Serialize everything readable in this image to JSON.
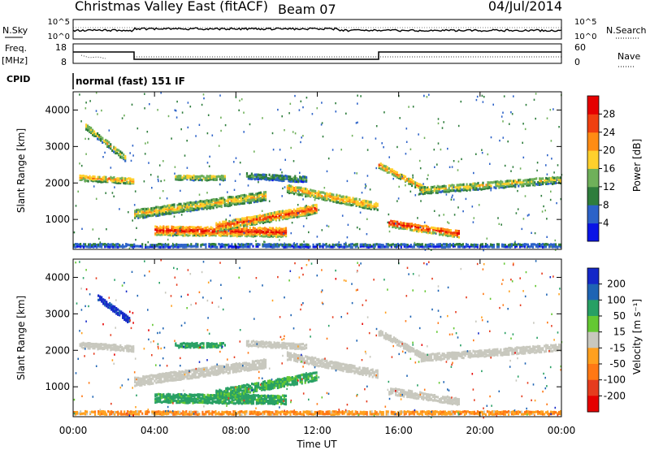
{
  "header": {
    "title": "Christmas Valley East (fitACF)",
    "beam": "Beam 07",
    "date": "04/Jul/2014"
  },
  "params": {
    "nsky_label": "N.Sky",
    "nsearch_label": "N.Search",
    "freq_label": "Freq.",
    "freq_unit": "[MHz]",
    "nave_label": "Nave",
    "cpid_label": "CPID",
    "cpid_value": "normal (fast) 151 IF",
    "noise_ticks": [
      "10^5",
      "10^0"
    ],
    "freq_ticks": [
      18,
      8
    ],
    "nave_ticks": [
      60,
      0
    ]
  },
  "chart_data": [
    {
      "type": "heatmap",
      "panel": "power",
      "ylabel": "Slant Range [km]",
      "xlabel": "",
      "x_ticks": [
        "00:00",
        "04:00",
        "08:00",
        "12:00",
        "16:00",
        "20:00",
        "00:00"
      ],
      "y_ticks": [
        1000,
        2000,
        3000,
        4000
      ],
      "ylim": [
        180,
        4500
      ],
      "colorbar": {
        "label": "Power [dB]",
        "ticks": [
          4,
          8,
          12,
          16,
          20,
          24,
          28
        ],
        "colors": [
          "#0a14e6",
          "#2c62c8",
          "#2e7d3c",
          "#6fb05a",
          "#ffd02c",
          "#ff8c14",
          "#f04010",
          "#e60000"
        ]
      },
      "bands": [
        {
          "t": [
            0.3,
            3.0
          ],
          "r0": 2150,
          "r1": 2050,
          "w": 160,
          "v": 22
        },
        {
          "t": [
            0.6,
            2.6
          ],
          "r0": 3550,
          "r1": 2650,
          "w": 170,
          "v": 18
        },
        {
          "t": [
            3.0,
            9.5
          ],
          "r0": 1150,
          "r1": 1650,
          "w": 250,
          "v": 20
        },
        {
          "t": [
            4.0,
            10.5
          ],
          "r0": 700,
          "r1": 650,
          "w": 250,
          "v": 30
        },
        {
          "t": [
            7.0,
            12.0
          ],
          "r0": 800,
          "r1": 1300,
          "w": 250,
          "v": 27
        },
        {
          "t": [
            5.0,
            7.5
          ],
          "r0": 2150,
          "r1": 2150,
          "w": 140,
          "v": 18
        },
        {
          "t": [
            8.5,
            11.5
          ],
          "r0": 2200,
          "r1": 2100,
          "w": 160,
          "v": 12
        },
        {
          "t": [
            10.5,
            15.0
          ],
          "r0": 1850,
          "r1": 1350,
          "w": 220,
          "v": 22
        },
        {
          "t": [
            15.0,
            17.5
          ],
          "r0": 2500,
          "r1": 1750,
          "w": 170,
          "v": 23
        },
        {
          "t": [
            17.0,
            24.0
          ],
          "r0": 1800,
          "r1": 2100,
          "w": 200,
          "v": 18
        },
        {
          "t": [
            15.5,
            19.0
          ],
          "r0": 900,
          "r1": 600,
          "w": 200,
          "v": 29
        },
        {
          "t": [
            0.0,
            24.0
          ],
          "r0": 300,
          "r1": 300,
          "w": 110,
          "v": 8
        }
      ]
    },
    {
      "type": "heatmap",
      "panel": "velocity",
      "ylabel": "Slant Range [km]",
      "xlabel": "Time UT",
      "x_ticks": [
        "00:00",
        "04:00",
        "08:00",
        "12:00",
        "16:00",
        "20:00",
        "00:00"
      ],
      "y_ticks": [
        1000,
        2000,
        3000,
        4000
      ],
      "ylim": [
        180,
        4500
      ],
      "colorbar": {
        "label": "Velocity [m s⁻¹]",
        "ticks": [
          200,
          100,
          50,
          15,
          -15,
          -50,
          -100,
          -200
        ],
        "colors": [
          "#1428c8",
          "#1e64b4",
          "#28a064",
          "#64c832",
          "#c8c8be",
          "#ffa01e",
          "#ff7814",
          "#e63c1e",
          "#e60000"
        ]
      },
      "bands": [
        {
          "t": [
            0.3,
            3.0
          ],
          "r0": 2150,
          "r1": 2050,
          "w": 160,
          "v": 0
        },
        {
          "t": [
            1.2,
            2.8
          ],
          "r0": 3450,
          "r1": 2800,
          "w": 170,
          "v": 220
        },
        {
          "t": [
            3.0,
            9.5
          ],
          "r0": 1150,
          "r1": 1650,
          "w": 250,
          "v": 0
        },
        {
          "t": [
            4.0,
            10.5
          ],
          "r0": 700,
          "r1": 650,
          "w": 250,
          "v": 70
        },
        {
          "t": [
            7.0,
            12.0
          ],
          "r0": 800,
          "r1": 1300,
          "w": 250,
          "v": 60
        },
        {
          "t": [
            5.0,
            7.5
          ],
          "r0": 2150,
          "r1": 2150,
          "w": 140,
          "v": 70
        },
        {
          "t": [
            8.5,
            11.5
          ],
          "r0": 2200,
          "r1": 2100,
          "w": 160,
          "v": 0
        },
        {
          "t": [
            10.5,
            15.0
          ],
          "r0": 1850,
          "r1": 1350,
          "w": 220,
          "v": 0
        },
        {
          "t": [
            15.0,
            17.5
          ],
          "r0": 2500,
          "r1": 1750,
          "w": 170,
          "v": 0
        },
        {
          "t": [
            17.0,
            24.0
          ],
          "r0": 1800,
          "r1": 2100,
          "w": 200,
          "v": 0
        },
        {
          "t": [
            15.5,
            19.0
          ],
          "r0": 900,
          "r1": 600,
          "w": 200,
          "v": 0
        },
        {
          "t": [
            0.0,
            24.0
          ],
          "r0": 300,
          "r1": 300,
          "w": 110,
          "v": -40
        }
      ]
    }
  ]
}
